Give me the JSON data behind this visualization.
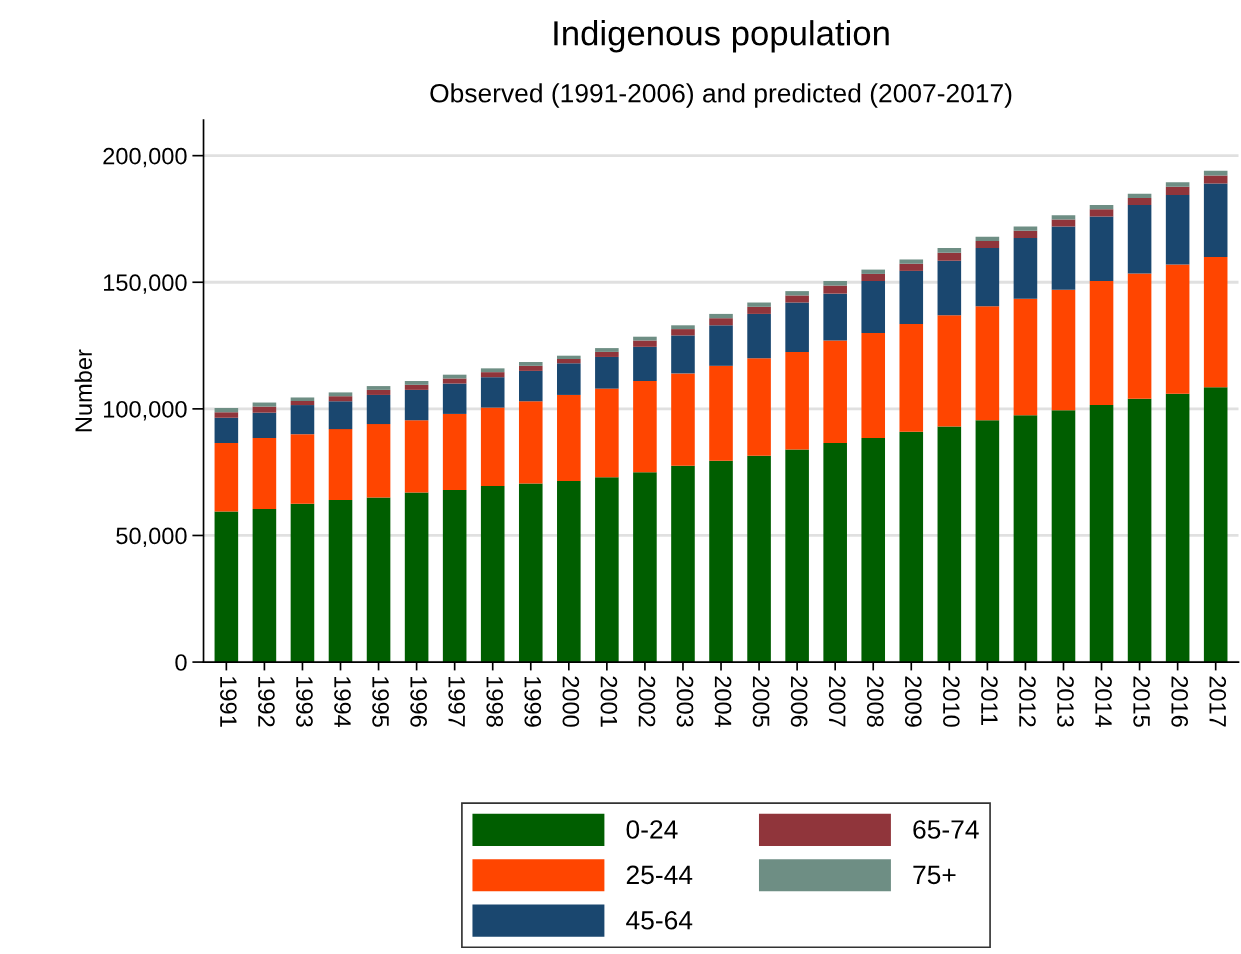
{
  "chart_data": {
    "type": "bar",
    "stacked": true,
    "title": "Indigenous population",
    "subtitle": "Observed (1991-2006) and predicted (2007-2017)",
    "ylabel": "Number",
    "categories": [
      "1991",
      "1992",
      "1993",
      "1994",
      "1995",
      "1996",
      "1997",
      "1998",
      "1999",
      "2000",
      "2001",
      "2002",
      "2003",
      "2004",
      "2005",
      "2006",
      "2007",
      "2008",
      "2009",
      "2010",
      "2011",
      "2012",
      "2013",
      "2014",
      "2015",
      "2016",
      "2017"
    ],
    "series": [
      {
        "name": "0-24",
        "color": "#005e00",
        "values": [
          59500,
          60500,
          62500,
          64000,
          65000,
          67000,
          68000,
          69500,
          70500,
          71500,
          73000,
          75000,
          77500,
          79500,
          81500,
          84000,
          86500,
          88500,
          91000,
          93000,
          95500,
          97500,
          99500,
          101500,
          104000,
          106000,
          108500
        ]
      },
      {
        "name": "25-44",
        "color": "#ff4500",
        "values": [
          27000,
          28000,
          27500,
          28000,
          29000,
          28500,
          30000,
          31000,
          32500,
          34000,
          35000,
          36000,
          36500,
          37500,
          38500,
          38500,
          40500,
          41500,
          42500,
          44000,
          45000,
          46000,
          47500,
          49000,
          49500,
          51000,
          51500
        ]
      },
      {
        "name": "45-64",
        "color": "#1a476f",
        "values": [
          10000,
          10000,
          11500,
          11000,
          11500,
          12000,
          12000,
          12000,
          12000,
          12500,
          12500,
          13500,
          15000,
          16000,
          17500,
          19500,
          18500,
          20500,
          21000,
          21500,
          23000,
          24000,
          25000,
          25500,
          27000,
          27500,
          29000
        ]
      },
      {
        "name": "65-74",
        "color": "#90353b",
        "values": [
          2200,
          2400,
          1600,
          2000,
          2000,
          2000,
          2000,
          2000,
          2000,
          1700,
          2000,
          2500,
          2500,
          2800,
          2800,
          2800,
          3200,
          2800,
          2800,
          3200,
          2800,
          2800,
          2800,
          2800,
          2800,
          3200,
          3200
        ]
      },
      {
        "name": "75+",
        "color": "#6e8e84",
        "values": [
          1600,
          1600,
          1400,
          1500,
          1500,
          1500,
          1500,
          1500,
          1500,
          1300,
          1500,
          1500,
          1500,
          1700,
          1700,
          1700,
          1800,
          1700,
          1700,
          1800,
          1700,
          1700,
          1700,
          1700,
          1700,
          1800,
          1800
        ]
      }
    ],
    "ylim": [
      0,
      214000
    ],
    "yticks": [
      {
        "value": 0,
        "label": "0"
      },
      {
        "value": 50000,
        "label": "50,000"
      },
      {
        "value": 100000,
        "label": "100,000"
      },
      {
        "value": 150000,
        "label": "150,000"
      },
      {
        "value": 200000,
        "label": "200,000"
      }
    ],
    "grid": "y",
    "legend": "bottom"
  }
}
